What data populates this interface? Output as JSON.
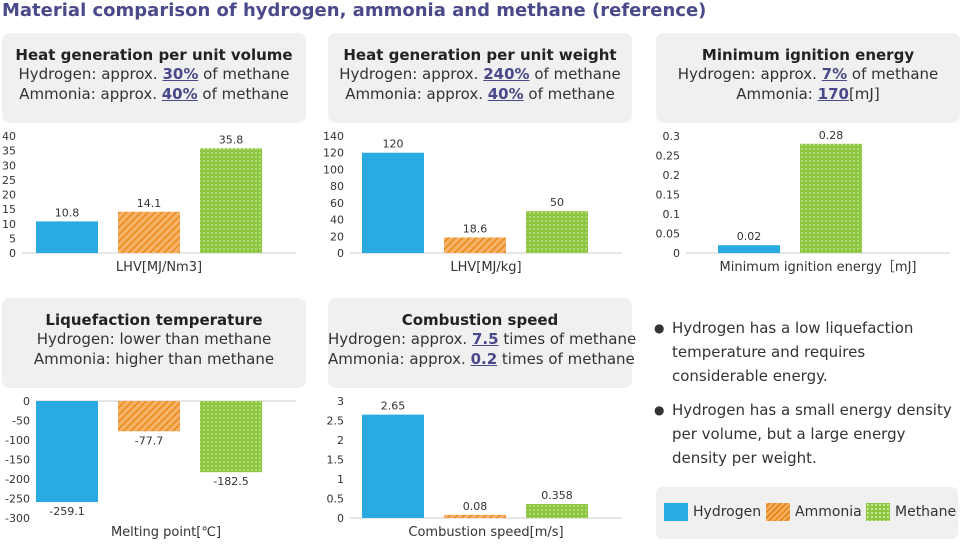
{
  "title": "Material comparison of hydrogen, ammonia and methane (reference)",
  "colors": {
    "hydrogen": "#29abe2",
    "ammonia": "#e8891c",
    "methane": "#8dc63f"
  },
  "panels": [
    {
      "title": "Heat generation per unit volume",
      "l1a": "Hydrogen: approx. ",
      "l1b": "30%",
      "l1c": " of methane",
      "l2a": "Ammonia: approx. ",
      "l2b": "40%",
      "l2c": " of methane"
    },
    {
      "title": "Heat generation per unit weight",
      "l1a": "Hydrogen: approx. ",
      "l1b": "240%",
      "l1c": " of methane",
      "l2a": "Ammonia: approx. ",
      "l2b": "40%",
      "l2c": " of methane"
    },
    {
      "title": "Minimum ignition energy",
      "l1a": "Hydrogen: approx. ",
      "l1b": "7%",
      "l1c": " of methane",
      "l2a": "Ammonia: ",
      "l2b": "170",
      "l2c": "[mJ]"
    },
    {
      "title": "Liquefaction temperature",
      "l1a": "Hydrogen: lower than methane",
      "l1b": "",
      "l1c": "",
      "l2a": "Ammonia: higher than methane",
      "l2b": "",
      "l2c": ""
    },
    {
      "title": "Combustion speed",
      "l1a": "Hydrogen: approx. ",
      "l1b": "7.5",
      "l1c": " times of methane",
      "l2a": "Ammonia: approx. ",
      "l2b": "0.2",
      "l2c": " times of methane"
    }
  ],
  "chart_data": [
    {
      "type": "bar",
      "categories": [
        "Hydrogen",
        "Ammonia",
        "Methane"
      ],
      "values": [
        10.8,
        14.1,
        35.8
      ],
      "labels": [
        "10.8",
        "14.1",
        "35.8"
      ],
      "xlabel": "LHV[MJ/Nm3]",
      "ylim": [
        0,
        40
      ],
      "yticks": [
        0,
        5,
        10,
        15,
        20,
        25,
        30,
        35,
        40
      ],
      "ytick_labels": [
        "0",
        "5",
        "10",
        "15",
        "20",
        "25",
        "30",
        "35",
        "40"
      ],
      "grid": false
    },
    {
      "type": "bar",
      "categories": [
        "Hydrogen",
        "Ammonia",
        "Methane"
      ],
      "values": [
        120,
        18.6,
        50
      ],
      "labels": [
        "120",
        "18.6",
        "50"
      ],
      "xlabel": "LHV[MJ/kg]",
      "ylim": [
        0,
        140
      ],
      "yticks": [
        0,
        20,
        40,
        60,
        80,
        100,
        120,
        140
      ],
      "ytick_labels": [
        "0",
        "20",
        "40",
        "60",
        "80",
        "100",
        "120",
        "140"
      ],
      "grid": false
    },
    {
      "type": "bar",
      "categories": [
        "Hydrogen",
        "Methane"
      ],
      "values": [
        0.02,
        0.28
      ],
      "labels": [
        "0.02",
        "0.28"
      ],
      "xlabel": "Minimum ignition energy［mJ]",
      "ylim": [
        0,
        0.3
      ],
      "yticks": [
        0,
        0.05,
        0.1,
        0.15,
        0.2,
        0.25,
        0.3
      ],
      "ytick_labels": [
        "0",
        "0.05",
        "0.1",
        "0.15",
        "0.2",
        "0.25",
        "0.3"
      ],
      "grid": false
    },
    {
      "type": "bar",
      "categories": [
        "Hydrogen",
        "Ammonia",
        "Methane"
      ],
      "values": [
        -259.1,
        -77.7,
        -182.5
      ],
      "labels": [
        "-259.1",
        "-77.7",
        "-182.5"
      ],
      "xlabel": "Melting point[℃]",
      "ylim": [
        -300,
        0
      ],
      "yticks": [
        0,
        -50,
        -100,
        -150,
        -200,
        -250,
        -300
      ],
      "ytick_labels": [
        "0",
        "-50",
        "-100",
        "-150",
        "-200",
        "-250",
        "-300"
      ],
      "grid": false
    },
    {
      "type": "bar",
      "categories": [
        "Hydrogen",
        "Ammonia",
        "Methane"
      ],
      "values": [
        2.65,
        0.08,
        0.358
      ],
      "labels": [
        "2.65",
        "0.08",
        "0.358"
      ],
      "xlabel": "Combustion speed[m/s]",
      "ylim": [
        0,
        3
      ],
      "yticks": [
        0,
        0.5,
        1,
        1.5,
        2,
        2.5,
        3
      ],
      "ytick_labels": [
        "0",
        "0.5",
        "1",
        "1.5",
        "2",
        "2.5",
        "3"
      ],
      "grid": false
    }
  ],
  "notes": [
    "Hydrogen has a low liquefaction temperature and requires considerable energy.",
    "Hydrogen has a small energy density per volume, but a large energy density per weight."
  ],
  "legend": {
    "hydrogen": "Hydrogen",
    "ammonia": "Ammonia",
    "methane": "Methane"
  }
}
